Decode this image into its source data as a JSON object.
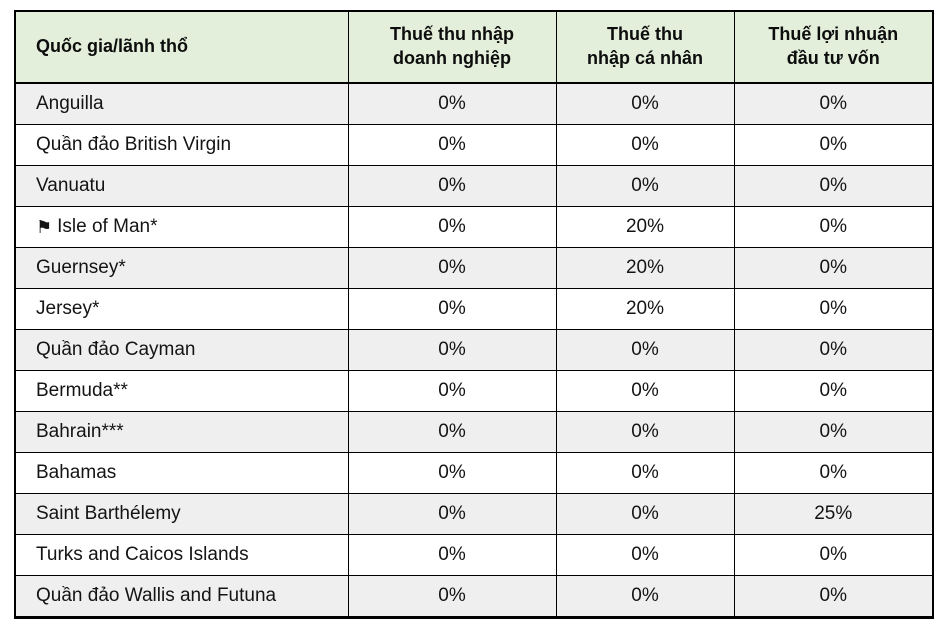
{
  "table": {
    "header": [
      {
        "line1": "Quốc gia/lãnh thổ",
        "line2": ""
      },
      {
        "line1": "Thuế thu nhập",
        "line2": "doanh nghiệp"
      },
      {
        "line1": "Thuế thu",
        "line2": "nhập cá nhân"
      },
      {
        "line1": "Thuế lợi nhuận",
        "line2": "đầu tư vốn"
      }
    ],
    "rows": [
      {
        "country": "Anguilla",
        "values": [
          "0%",
          "0%",
          "0%"
        ]
      },
      {
        "country": "Quần đảo British Virgin",
        "values": [
          "0%",
          "0%",
          "0%"
        ]
      },
      {
        "country": "Vanuatu",
        "values": [
          "0%",
          "0%",
          "0%"
        ]
      },
      {
        "country": "Isle of Man*",
        "values": [
          "0%",
          "20%",
          "0%"
        ]
      },
      {
        "country": "Guernsey*",
        "values": [
          "0%",
          "20%",
          "0%"
        ]
      },
      {
        "country": "Jersey*",
        "values": [
          "0%",
          "20%",
          "0%"
        ]
      },
      {
        "country": "Quần đảo Cayman",
        "values": [
          "0%",
          "0%",
          "0%"
        ]
      },
      {
        "country": "Bermuda**",
        "values": [
          "0%",
          "0%",
          "0%"
        ]
      },
      {
        "country": "Bahrain***",
        "values": [
          "0%",
          "0%",
          "0%"
        ]
      },
      {
        "country": "Bahamas",
        "values": [
          "0%",
          "0%",
          "0%"
        ]
      },
      {
        "country": "Saint Barthélemy",
        "values": [
          "0%",
          "0%",
          "25%"
        ]
      },
      {
        "country": "Turks and Caicos Islands",
        "values": [
          "0%",
          "0%",
          "0%"
        ]
      },
      {
        "country": "Quần đảo Wallis and Futuna",
        "values": [
          "0%",
          "0%",
          "0%"
        ]
      }
    ],
    "icons": {
      "flag": "⚑"
    },
    "colors": {
      "header_bg": "#e3efda",
      "row_alt_bg": "#efefef",
      "row_bg": "#ffffff",
      "border": "#000000"
    }
  }
}
